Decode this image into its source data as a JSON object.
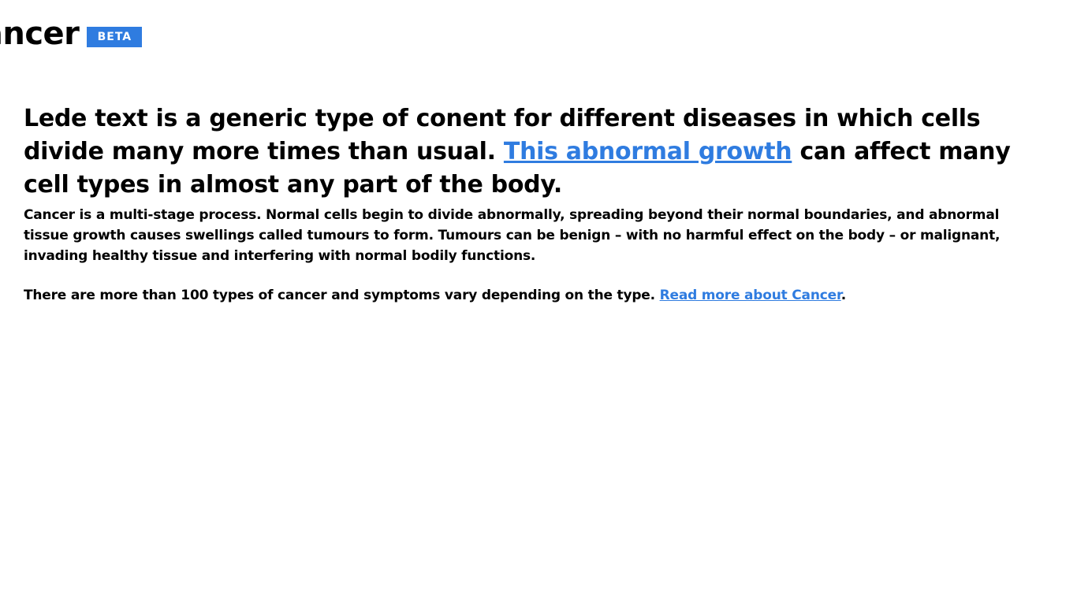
{
  "header": {
    "title": "Cancer",
    "badge": "BETA"
  },
  "lede": {
    "before_link": "Lede text is a generic type of conent for different diseases in which cells divide many more times than usual. ",
    "link_text": "This abnormal growth",
    "after_link": " can affect many cell types in almost any part of the body."
  },
  "body": {
    "paragraph_1": "Cancer is a multi-stage process. Normal cells begin to divide abnormally, spreading beyond their normal boundaries, and abnormal tissue growth causes swellings called tumours to form. Tumours can be benign – with no harmful effect on the body – or malignant, invading healthy tissue and interfering with normal bodily functions.",
    "paragraph_2_text": "There are more than 100 types of cancer and symptoms vary depending on the type. ",
    "paragraph_2_link": "Read more about Cancer",
    "paragraph_2_end": "."
  },
  "colors": {
    "accent": "#2f7ce0",
    "text": "#000000",
    "background": "#ffffff"
  }
}
